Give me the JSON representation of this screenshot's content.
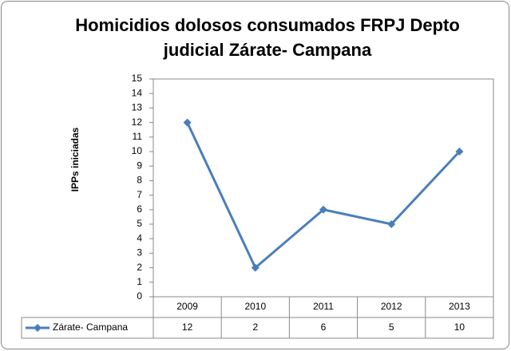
{
  "chart_data": {
    "type": "line",
    "title": "Homicidios dolosos consumados FRPJ Depto judicial Zárate- Campana",
    "y_label": "IPPs iniciadas",
    "categories": [
      "2009",
      "2010",
      "2011",
      "2012",
      "2013"
    ],
    "series": [
      {
        "name": "Zárate- Campana",
        "color": "#4a7ebb",
        "values": [
          12,
          2,
          6,
          5,
          10
        ]
      }
    ],
    "ylim": [
      0,
      15
    ],
    "yticks": [
      0,
      1,
      2,
      3,
      4,
      5,
      6,
      7,
      8,
      9,
      10,
      11,
      12,
      13,
      14,
      15
    ],
    "grid": false,
    "data_table": true
  }
}
